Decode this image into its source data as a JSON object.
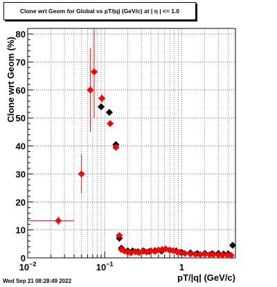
{
  "chart_data": {
    "type": "scatter",
    "title": "Clone wrt Geom for Global vs pT/|q| (GeV/c) at |  η  | <= 1.0",
    "xlabel": "pT/|q| (GeV/c)",
    "ylabel": "Clone wrt Geom (%)",
    "x_scale": "log",
    "xlim": [
      0.01,
      5.0
    ],
    "ylim": [
      0,
      82
    ],
    "x_ticks": [
      {
        "value": 0.01,
        "label": "10",
        "exp": "−2"
      },
      {
        "value": 0.1,
        "label": "10",
        "exp": "−1"
      },
      {
        "value": 1,
        "label": "1",
        "exp": ""
      }
    ],
    "y_ticks": [
      0,
      10,
      20,
      30,
      40,
      50,
      60,
      70,
      80
    ],
    "grid": true,
    "series": [
      {
        "color": "#000000",
        "marker": "diamond",
        "points": [
          {
            "x": 0.09,
            "y": 54
          },
          {
            "x": 0.115,
            "y": 52
          },
          {
            "x": 0.14,
            "y": 40.5
          },
          {
            "x": 0.155,
            "y": 7
          },
          {
            "x": 0.165,
            "y": 3.5
          },
          {
            "x": 0.2,
            "y": 2.5
          },
          {
            "x": 0.23,
            "y": 2.5
          },
          {
            "x": 0.27,
            "y": 2.2
          },
          {
            "x": 0.32,
            "y": 2.5
          },
          {
            "x": 0.38,
            "y": 2.3
          },
          {
            "x": 0.45,
            "y": 2.6
          },
          {
            "x": 0.55,
            "y": 2.4
          },
          {
            "x": 0.7,
            "y": 2.8
          },
          {
            "x": 0.85,
            "y": 2.5
          },
          {
            "x": 1.0,
            "y": 2.0
          },
          {
            "x": 1.3,
            "y": 1.8
          },
          {
            "x": 1.6,
            "y": 1.6
          },
          {
            "x": 2.0,
            "y": 1.6
          },
          {
            "x": 2.5,
            "y": 1.5
          },
          {
            "x": 3.0,
            "y": 1.6
          },
          {
            "x": 3.5,
            "y": 1.4
          },
          {
            "x": 4.0,
            "y": 1.5
          },
          {
            "x": 4.6,
            "y": 4.5
          }
        ]
      },
      {
        "color": "#ff0000",
        "marker": "diamond",
        "points": [
          {
            "x": 0.025,
            "y": 13.3,
            "xlo": 0.01,
            "xhi": 0.04,
            "ylo": 11.8,
            "yhi": 14.8
          },
          {
            "x": 0.05,
            "y": 30,
            "xlo": 0.05,
            "xhi": 0.05,
            "ylo": 23,
            "yhi": 37
          },
          {
            "x": 0.065,
            "y": 60,
            "xlo": 0.065,
            "xhi": 0.065,
            "ylo": 45,
            "yhi": 75
          },
          {
            "x": 0.073,
            "y": 66.5,
            "xlo": 0.073,
            "xhi": 0.073,
            "ylo": 50,
            "yhi": 82
          },
          {
            "x": 0.092,
            "y": 57,
            "xlo": 0.087,
            "xhi": 0.097,
            "ylo": 55.5,
            "yhi": 58.5
          },
          {
            "x": 0.118,
            "y": 48,
            "xlo": 0.118,
            "xhi": 0.118,
            "ylo": 47,
            "yhi": 49
          },
          {
            "x": 0.14,
            "y": 39.5,
            "xlo": 0.14,
            "xhi": 0.14,
            "ylo": 38.5,
            "yhi": 40.5
          },
          {
            "x": 0.155,
            "y": 8,
            "xlo": 0.155,
            "xhi": 0.155,
            "ylo": 7,
            "yhi": 9
          },
          {
            "x": 0.165,
            "y": 3,
            "xlo": 0.165,
            "xhi": 0.165,
            "ylo": 2,
            "yhi": 4
          },
          {
            "x": 0.18,
            "y": 2.5
          },
          {
            "x": 0.2,
            "y": 2.0
          },
          {
            "x": 0.22,
            "y": 1.8
          },
          {
            "x": 0.25,
            "y": 2.2
          },
          {
            "x": 0.28,
            "y": 1.9
          },
          {
            "x": 0.31,
            "y": 2.4
          },
          {
            "x": 0.35,
            "y": 2.1
          },
          {
            "x": 0.4,
            "y": 2.5
          },
          {
            "x": 0.45,
            "y": 2.3
          },
          {
            "x": 0.5,
            "y": 2.8
          },
          {
            "x": 0.56,
            "y": 3.0
          },
          {
            "x": 0.62,
            "y": 3.2
          },
          {
            "x": 0.7,
            "y": 2.7
          },
          {
            "x": 0.78,
            "y": 2.6
          },
          {
            "x": 0.87,
            "y": 2.2
          },
          {
            "x": 0.95,
            "y": 2.0
          },
          {
            "x": 1.1,
            "y": 1.6
          },
          {
            "x": 1.3,
            "y": 1.4
          },
          {
            "x": 1.5,
            "y": 1.3
          },
          {
            "x": 1.75,
            "y": 1.2
          },
          {
            "x": 2.0,
            "y": 1.3
          },
          {
            "x": 2.3,
            "y": 1.2
          },
          {
            "x": 2.6,
            "y": 1.3
          },
          {
            "x": 3.0,
            "y": 1.1
          },
          {
            "x": 3.4,
            "y": 1.0
          },
          {
            "x": 3.9,
            "y": 1.1
          },
          {
            "x": 4.4,
            "y": 0.9
          }
        ]
      }
    ]
  },
  "footer": {
    "timestamp": "Wed Sep 21 08:28:49 2022"
  }
}
